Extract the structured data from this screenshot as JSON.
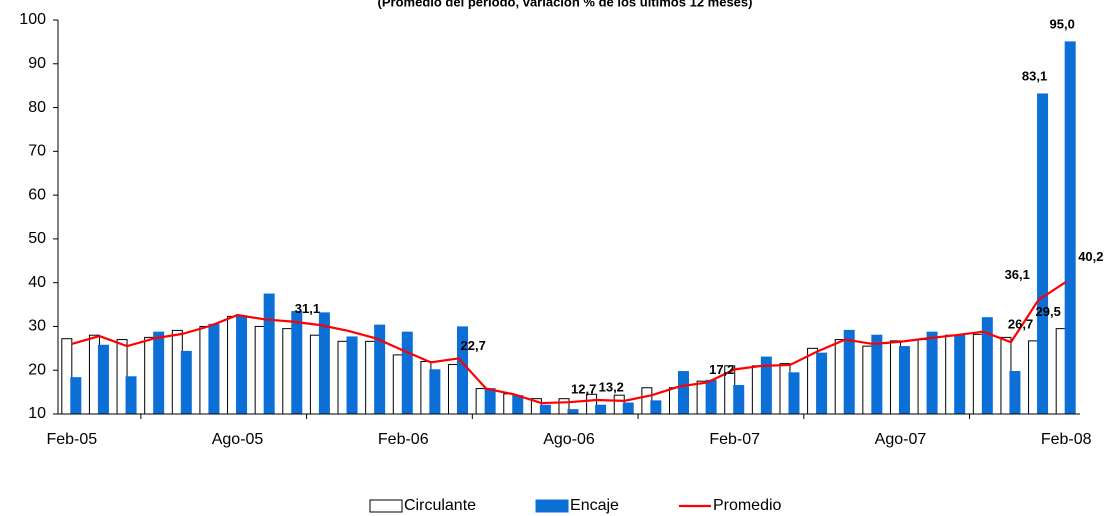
{
  "chart_data": {
    "type": "bar_line",
    "subtitle": "(Promedio del período, variación % de los últimos 12 meses)",
    "categories": [
      "Feb-05",
      null,
      null,
      null,
      null,
      null,
      "Ago-05",
      null,
      null,
      null,
      null,
      null,
      "Feb-06",
      null,
      null,
      null,
      null,
      null,
      "Ago-06",
      null,
      null,
      null,
      null,
      null,
      "Feb-07",
      null,
      null,
      null,
      null,
      null,
      "Ago-07",
      null,
      null,
      null,
      null,
      null,
      "Feb-08"
    ],
    "series": [
      {
        "name": "Circulante",
        "kind": "bar",
        "color": "#ffffff",
        "values": [
          27.2,
          28.0,
          27.0,
          27.5,
          29.1,
          30.0,
          32.3,
          30.0,
          29.5,
          28.0,
          26.6,
          26.6,
          23.5,
          22.0,
          21.3,
          15.8,
          14.6,
          13.5,
          13.5,
          14.5,
          14.3,
          16.0,
          16.0,
          17.5,
          21.0,
          21.0,
          21.5,
          25.0,
          27.0,
          25.5,
          26.7,
          27.0,
          28.0,
          28.2,
          27.5,
          26.7,
          29.5
        ],
        "value_labels": [
          null,
          null,
          null,
          null,
          null,
          null,
          null,
          null,
          null,
          null,
          null,
          null,
          null,
          null,
          null,
          null,
          null,
          null,
          null,
          null,
          null,
          null,
          null,
          null,
          null,
          null,
          null,
          null,
          null,
          null,
          null,
          null,
          null,
          null,
          null,
          "26,7",
          "29,5"
        ]
      },
      {
        "name": "Encaje",
        "kind": "bar",
        "color": "#0b6fd6",
        "values": [
          18.3,
          25.7,
          18.5,
          28.7,
          24.3,
          30.5,
          32.4,
          37.4,
          33.4,
          33.1,
          27.6,
          30.3,
          28.7,
          20.1,
          29.9,
          15.8,
          14.2,
          12.0,
          11.0,
          12.0,
          12.5,
          13.0,
          19.7,
          17.7,
          16.5,
          23.0,
          19.4,
          23.9,
          29.1,
          28.0,
          25.4,
          28.7,
          28.0,
          32.0,
          19.7,
          83.1,
          95.0
        ],
        "value_labels": [
          null,
          null,
          null,
          null,
          null,
          null,
          null,
          null,
          null,
          null,
          null,
          null,
          null,
          null,
          null,
          null,
          null,
          null,
          null,
          null,
          null,
          null,
          null,
          null,
          null,
          null,
          null,
          null,
          null,
          null,
          null,
          null,
          null,
          null,
          null,
          "83,1",
          "95,0"
        ]
      },
      {
        "name": "Promedio",
        "kind": "line",
        "color": "#ff0000",
        "values": [
          26.0,
          27.8,
          25.5,
          27.3,
          28.3,
          30.1,
          32.6,
          31.6,
          31.1,
          30.3,
          29.0,
          27.3,
          24.5,
          21.8,
          22.7,
          15.8,
          14.5,
          12.5,
          12.7,
          13.2,
          13.0,
          14.3,
          16.3,
          17.2,
          20.2,
          21.0,
          21.2,
          24.3,
          27.0,
          26.0,
          26.5,
          27.3,
          28.0,
          28.8,
          26.4,
          36.1,
          40.2
        ],
        "value_labels": [
          null,
          null,
          null,
          null,
          null,
          null,
          null,
          null,
          "31,1",
          null,
          null,
          null,
          null,
          null,
          "22,7",
          null,
          null,
          null,
          "12,7",
          "13,2",
          null,
          null,
          null,
          "17,2",
          null,
          null,
          null,
          null,
          null,
          null,
          null,
          null,
          null,
          null,
          null,
          "36,1",
          "40,2"
        ]
      }
    ],
    "ylim": [
      10,
      100
    ],
    "yticks": [
      10,
      20,
      30,
      40,
      50,
      60,
      70,
      80,
      90,
      100
    ]
  }
}
